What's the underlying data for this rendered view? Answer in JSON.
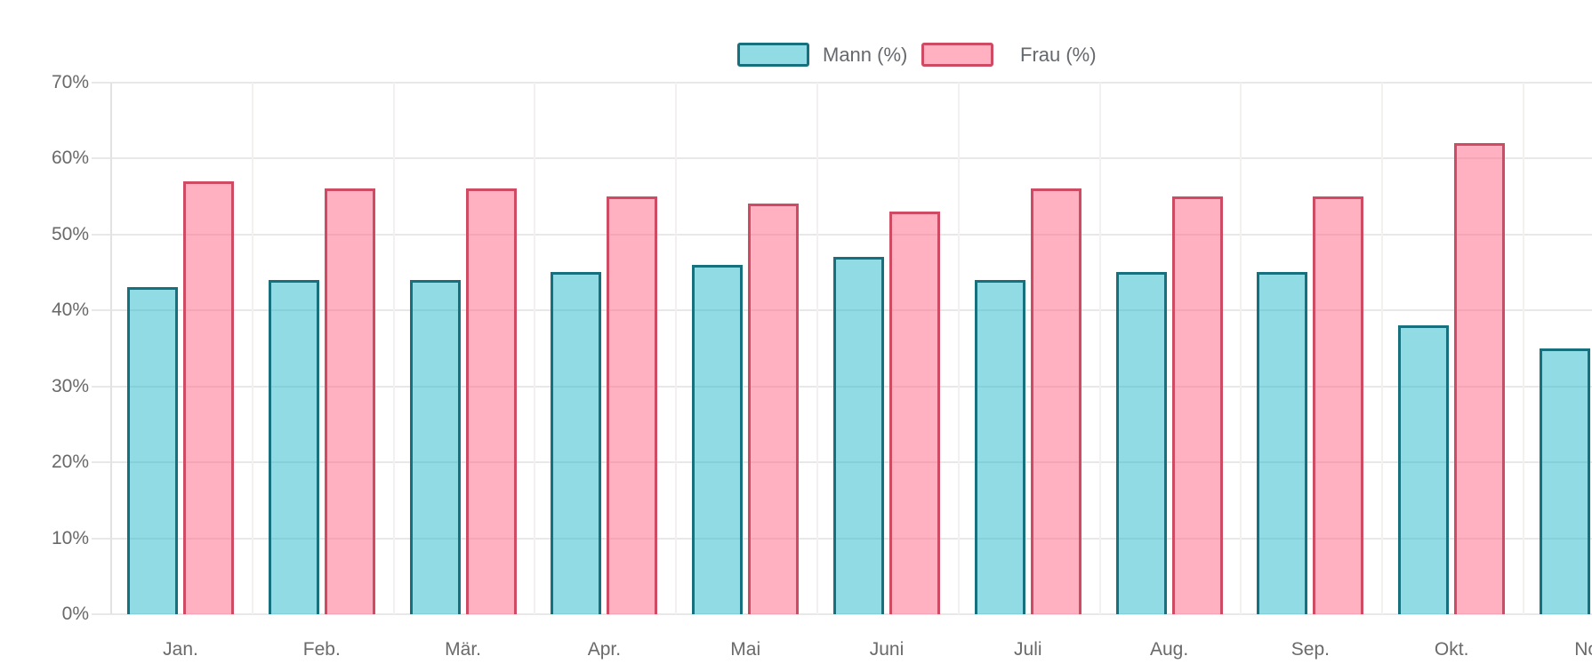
{
  "chart_data": {
    "type": "bar",
    "title": "",
    "xlabel": "",
    "ylabel": "",
    "categories": [
      "Jan.",
      "Feb.",
      "Mär.",
      "Apr.",
      "Mai",
      "Juni",
      "Juli",
      "Aug.",
      "Sep.",
      "Okt.",
      "Nov."
    ],
    "series": [
      {
        "name": "Mann (%)",
        "values": [
          43,
          44,
          44,
          45,
          46,
          47,
          44,
          45,
          45,
          38,
          35
        ],
        "fill": "rgba(33,183,201,0.5)",
        "border": "#17707e"
      },
      {
        "name": "Frau (%)",
        "values": [
          57,
          56,
          56,
          55,
          54,
          53,
          56,
          55,
          55,
          62,
          null
        ],
        "fill": "rgba(255,99,132,0.5)",
        "border": "#cf4a63"
      }
    ],
    "y_ticks": [
      "70%",
      "60%",
      "50%",
      "40%",
      "30%",
      "20%",
      "10%",
      "0%"
    ],
    "ylim": [
      0,
      70
    ],
    "grid": true,
    "legend_position": "top",
    "layout_note": "chart is cropped at the right edge: Nov. group only partially visible (Frau bar off-screen)"
  },
  "colors": {
    "background": "#ffffff",
    "grid_horizontal": "#e8e8e8",
    "grid_vertical_first": "#e2e2e2",
    "grid_vertical": "#f5f0f0",
    "axis_text": "#696969",
    "legend_text": "#65686d"
  }
}
